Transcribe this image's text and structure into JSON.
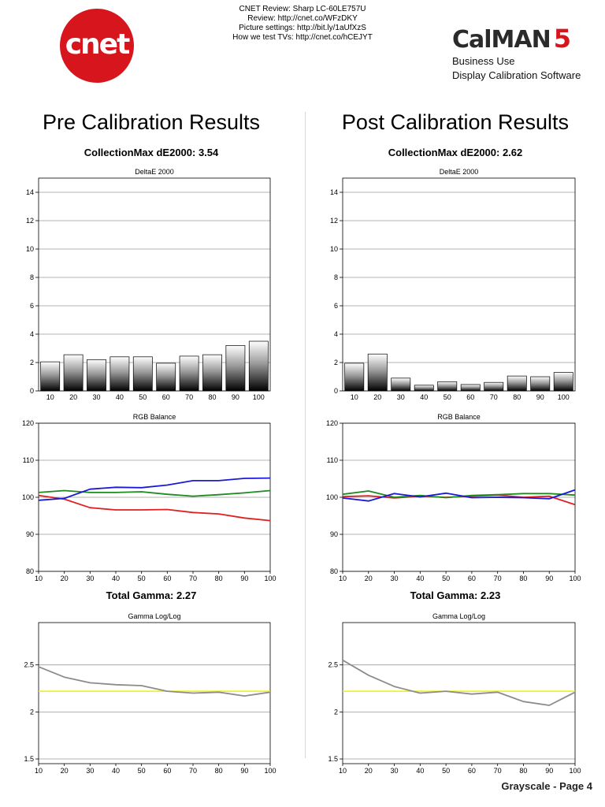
{
  "header": {
    "lines": [
      "CNET Review: Sharp LC-60LE757U",
      "Review: http://cnet.co/WFzDKY",
      "Picture settings: http://bit.ly/1aUfXzS",
      "How we test TVs: http://cnet.co/hCEJYT"
    ],
    "logo_text": "cnet",
    "brand": "CalMAN",
    "brand_version": "5",
    "brand_sub1": "Business Use",
    "brand_sub2": "Display Calibration Software"
  },
  "pre": {
    "title": "Pre Calibration Results",
    "collection_max": "CollectionMax dE2000: 3.54",
    "total_gamma": "Total Gamma: 2.27"
  },
  "post": {
    "title": "Post Calibration Results",
    "collection_max": "CollectionMax dE2000: 2.62",
    "total_gamma": "Total Gamma: 2.23"
  },
  "footer": "Grayscale - Page 4",
  "chart_data": [
    {
      "id": "pre-deltae",
      "type": "bar",
      "title": "DeltaE 2000",
      "categories": [
        "10",
        "20",
        "30",
        "40",
        "50",
        "60",
        "70",
        "80",
        "90",
        "100"
      ],
      "values": [
        2.05,
        2.55,
        2.2,
        2.4,
        2.4,
        1.95,
        2.45,
        2.55,
        3.2,
        3.5
      ],
      "ylim": [
        0,
        15
      ],
      "yticks": [
        0,
        2,
        4,
        6,
        8,
        10,
        12,
        14
      ],
      "grid": true
    },
    {
      "id": "post-deltae",
      "type": "bar",
      "title": "DeltaE 2000",
      "categories": [
        "10",
        "20",
        "30",
        "40",
        "50",
        "60",
        "70",
        "80",
        "90",
        "100"
      ],
      "values": [
        1.95,
        2.6,
        0.9,
        0.4,
        0.65,
        0.45,
        0.6,
        1.05,
        1.0,
        1.3
      ],
      "ylim": [
        0,
        15
      ],
      "yticks": [
        0,
        2,
        4,
        6,
        8,
        10,
        12,
        14
      ],
      "grid": true
    },
    {
      "id": "pre-rgb",
      "type": "line",
      "title": "RGB Balance",
      "x": [
        10,
        20,
        30,
        40,
        50,
        60,
        70,
        80,
        90,
        100
      ],
      "ylim": [
        80,
        120
      ],
      "yticks": [
        80,
        90,
        100,
        110,
        120
      ],
      "grid": true,
      "series": [
        {
          "color": "#e02020",
          "values": [
            100.5,
            99.5,
            97.2,
            96.6,
            96.6,
            96.7,
            95.9,
            95.5,
            94.4,
            93.7
          ]
        },
        {
          "color": "#1f8a1f",
          "values": [
            101.3,
            101.8,
            101.3,
            101.3,
            101.5,
            100.8,
            100.3,
            100.7,
            101.2,
            101.8
          ]
        },
        {
          "color": "#1a1ad6",
          "values": [
            99.2,
            99.7,
            102.2,
            102.7,
            102.6,
            103.3,
            104.5,
            104.5,
            105.1,
            105.2
          ]
        }
      ]
    },
    {
      "id": "post-rgb",
      "type": "line",
      "title": "RGB Balance",
      "x": [
        10,
        20,
        30,
        40,
        50,
        60,
        70,
        80,
        90,
        100
      ],
      "ylim": [
        80,
        120
      ],
      "yticks": [
        80,
        90,
        100,
        110,
        120
      ],
      "grid": true,
      "series": [
        {
          "color": "#e02020",
          "values": [
            100.2,
            100.4,
            99.8,
            100.3,
            100.0,
            100.3,
            100.6,
            100.0,
            100.3,
            98.0
          ]
        },
        {
          "color": "#1f8a1f",
          "values": [
            100.8,
            101.7,
            100.0,
            100.5,
            99.9,
            100.5,
            100.7,
            101.0,
            101.0,
            100.6
          ]
        },
        {
          "color": "#1a1ad6",
          "values": [
            99.8,
            99.0,
            101.0,
            100.1,
            101.1,
            99.9,
            100.0,
            99.9,
            99.6,
            102.0
          ]
        }
      ]
    },
    {
      "id": "pre-gamma",
      "type": "line",
      "title": "Gamma Log/Log",
      "x": [
        10,
        20,
        30,
        40,
        50,
        60,
        70,
        80,
        90,
        100
      ],
      "ylim": [
        1.45,
        2.95
      ],
      "yticks": [
        1.5,
        2,
        2.5
      ],
      "grid": true,
      "reference": {
        "color": "#f0f000",
        "value": 2.22
      },
      "series": [
        {
          "color": "#8c8c8c",
          "values": [
            2.48,
            2.37,
            2.31,
            2.29,
            2.28,
            2.22,
            2.2,
            2.21,
            2.17,
            2.21
          ]
        }
      ]
    },
    {
      "id": "post-gamma",
      "type": "line",
      "title": "Gamma Log/Log",
      "x": [
        10,
        20,
        30,
        40,
        50,
        60,
        70,
        80,
        90,
        100
      ],
      "ylim": [
        1.45,
        2.95
      ],
      "yticks": [
        1.5,
        2,
        2.5
      ],
      "grid": true,
      "reference": {
        "color": "#f0f000",
        "value": 2.22
      },
      "series": [
        {
          "color": "#8c8c8c",
          "values": [
            2.55,
            2.39,
            2.27,
            2.2,
            2.22,
            2.19,
            2.21,
            2.11,
            2.07,
            2.21
          ]
        }
      ]
    }
  ]
}
